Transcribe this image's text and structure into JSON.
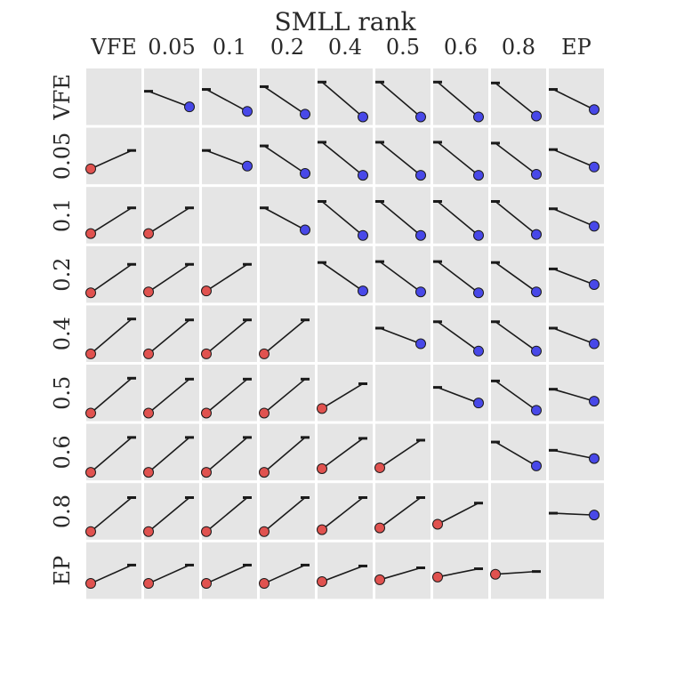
{
  "chart_data": {
    "type": "scatter",
    "title": "SMLL rank",
    "labels": [
      "VFE",
      "0.05",
      "0.1",
      "0.2",
      "0.4",
      "0.5",
      "0.6",
      "0.8",
      "EP"
    ],
    "xlabel": "",
    "ylabel": "",
    "grid": false,
    "legend": "none",
    "ylim": [
      0,
      1
    ],
    "colors": {
      "background": "#e5e5e5",
      "line": "#1a1a1a",
      "lower_point": "#e0524f",
      "upper_point": "#4848e8"
    },
    "description_of_encoding": "",
    "rows": [
      [
        null,
        [
          0.62,
          0.28
        ],
        [
          0.66,
          0.18
        ],
        [
          0.72,
          0.12
        ],
        [
          0.82,
          0.06
        ],
        [
          0.82,
          0.06
        ],
        [
          0.82,
          0.06
        ],
        [
          0.8,
          0.08
        ],
        [
          0.66,
          0.22
        ]
      ],
      [
        [
          0.22,
          0.62
        ],
        null,
        [
          0.62,
          0.28
        ],
        [
          0.72,
          0.12
        ],
        [
          0.8,
          0.08
        ],
        [
          0.8,
          0.08
        ],
        [
          0.8,
          0.08
        ],
        [
          0.78,
          0.1
        ],
        [
          0.64,
          0.26
        ]
      ],
      [
        [
          0.1,
          0.66
        ],
        [
          0.1,
          0.66
        ],
        null,
        [
          0.66,
          0.18
        ],
        [
          0.8,
          0.06
        ],
        [
          0.8,
          0.06
        ],
        [
          0.8,
          0.06
        ],
        [
          0.8,
          0.08
        ],
        [
          0.64,
          0.26
        ]
      ],
      [
        [
          0.1,
          0.72
        ],
        [
          0.12,
          0.72
        ],
        [
          0.14,
          0.72
        ],
        null,
        [
          0.76,
          0.14
        ],
        [
          0.78,
          0.12
        ],
        [
          0.78,
          0.1
        ],
        [
          0.76,
          0.12
        ],
        [
          0.62,
          0.28
        ]
      ],
      [
        [
          0.06,
          0.82
        ],
        [
          0.06,
          0.8
        ],
        [
          0.06,
          0.8
        ],
        [
          0.06,
          0.8
        ],
        null,
        [
          0.62,
          0.28
        ],
        [
          0.76,
          0.12
        ],
        [
          0.76,
          0.12
        ],
        [
          0.62,
          0.28
        ]
      ],
      [
        [
          0.06,
          0.82
        ],
        [
          0.06,
          0.8
        ],
        [
          0.06,
          0.8
        ],
        [
          0.06,
          0.8
        ],
        [
          0.16,
          0.7
        ],
        null,
        [
          0.62,
          0.28
        ],
        [
          0.76,
          0.12
        ],
        [
          0.58,
          0.32
        ]
      ],
      [
        [
          0.06,
          0.82
        ],
        [
          0.06,
          0.82
        ],
        [
          0.06,
          0.82
        ],
        [
          0.06,
          0.82
        ],
        [
          0.14,
          0.8
        ],
        [
          0.16,
          0.76
        ],
        null,
        [
          0.72,
          0.2
        ],
        [
          0.54,
          0.36
        ]
      ],
      [
        [
          0.06,
          0.8
        ],
        [
          0.06,
          0.8
        ],
        [
          0.06,
          0.8
        ],
        [
          0.06,
          0.8
        ],
        [
          0.1,
          0.8
        ],
        [
          0.14,
          0.8
        ],
        [
          0.22,
          0.68
        ],
        null,
        [
          0.46,
          0.42
        ]
      ],
      [
        [
          0.22,
          0.62
        ],
        [
          0.22,
          0.62
        ],
        [
          0.22,
          0.62
        ],
        [
          0.22,
          0.62
        ],
        [
          0.26,
          0.6
        ],
        [
          0.3,
          0.56
        ],
        [
          0.36,
          0.54
        ],
        [
          0.42,
          0.48
        ],
        null
      ]
    ]
  }
}
